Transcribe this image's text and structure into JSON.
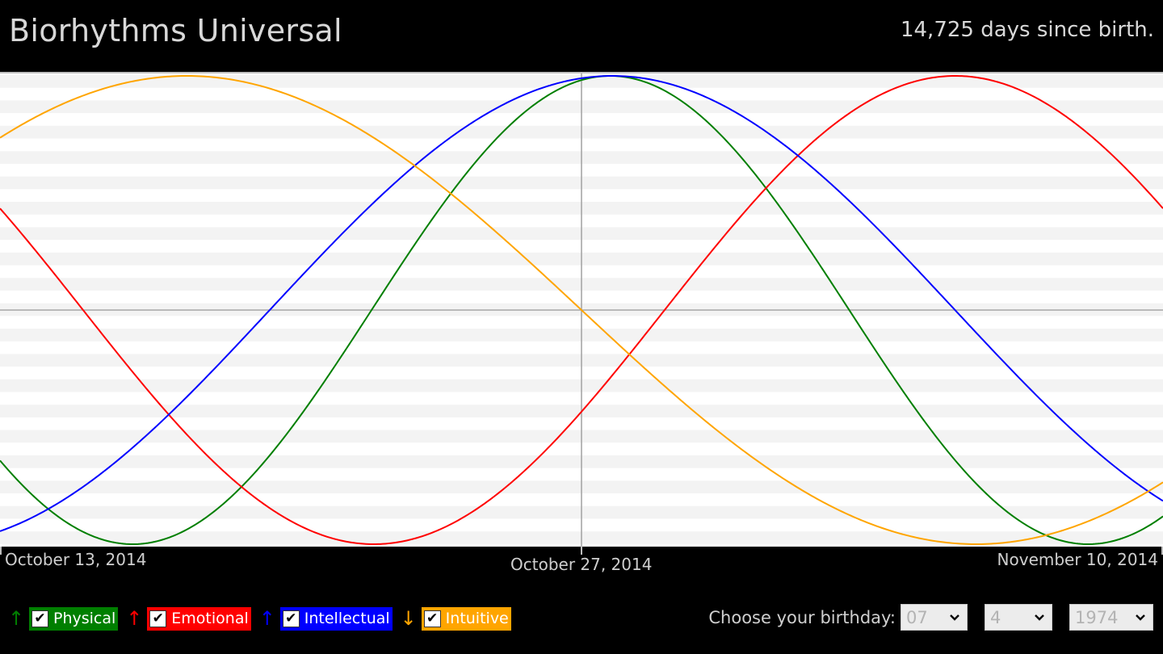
{
  "header": {
    "title": "Biorhythms Universal",
    "days_since_birth": "14,725 days since birth."
  },
  "chart_data": {
    "type": "line",
    "title": "",
    "xlabel": "",
    "ylabel": "",
    "x_dates": [
      "October 13, 2014",
      "October 27, 2014",
      "November 10, 2014"
    ],
    "current_date": "October 27, 2014",
    "xlim_days_from_current": [
      -14,
      14
    ],
    "ylim": [
      -1,
      1
    ],
    "grid": "horizontal stripes",
    "series": [
      {
        "name": "Physical",
        "color": "#007f00",
        "period_days": 23,
        "value_at_current_date": 0.982,
        "trend": "up"
      },
      {
        "name": "Emotional",
        "color": "#ff0000",
        "period_days": 28,
        "value_at_current_date": -0.434,
        "trend": "up"
      },
      {
        "name": "Intellectual",
        "color": "#0000ff",
        "period_days": 33,
        "value_at_current_date": 0.99,
        "trend": "up"
      },
      {
        "name": "Intuitive",
        "color": "#ffa500",
        "period_days": 38,
        "value_at_current_date": 0.0,
        "trend": "down"
      }
    ]
  },
  "legend": {
    "items": [
      {
        "label": "Physical",
        "color": "#007f00",
        "arrow": "↑",
        "checked": "✔"
      },
      {
        "label": "Emotional",
        "color": "#ff0000",
        "arrow": "↑",
        "checked": "✔"
      },
      {
        "label": "Intellectual",
        "color": "#0000ff",
        "arrow": "↑",
        "checked": "✔"
      },
      {
        "label": "Intuitive",
        "color": "#ffa500",
        "arrow": "↓",
        "checked": "✔"
      }
    ]
  },
  "birthday": {
    "prompt": "Choose your birthday:",
    "month": "07",
    "day": "4",
    "year": "1974"
  }
}
